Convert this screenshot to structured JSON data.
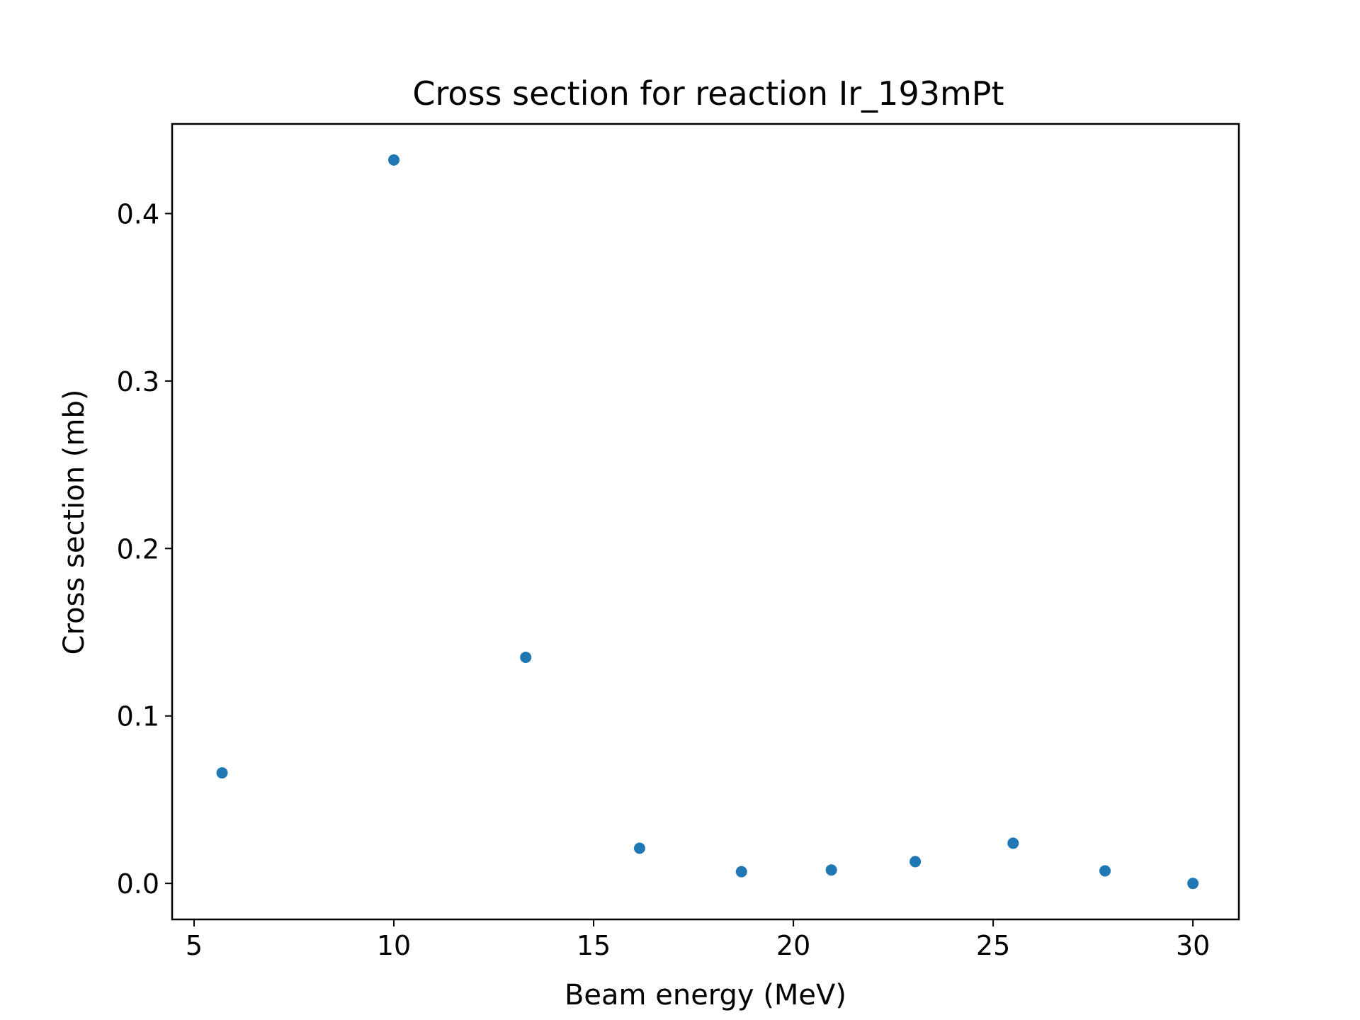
{
  "chart_data": {
    "type": "scatter",
    "title": "Cross section for reaction Ir_193mPt",
    "xlabel": "Beam energy (MeV)",
    "ylabel": "Cross section (mb)",
    "xlim": [
      4.45,
      31.15
    ],
    "ylim": [
      -0.0215,
      0.4535
    ],
    "x_ticks": [
      5,
      10,
      15,
      20,
      25,
      30
    ],
    "y_ticks": [
      0.0,
      0.1,
      0.2,
      0.3,
      0.4
    ],
    "x_tick_labels": [
      "5",
      "10",
      "15",
      "20",
      "25",
      "30"
    ],
    "y_tick_labels": [
      "0.0",
      "0.1",
      "0.2",
      "0.3",
      "0.4"
    ],
    "grid": false,
    "legend": "none",
    "series": [
      {
        "color": "#1f77b4",
        "marker": "circle",
        "x": [
          5.7,
          10.0,
          13.3,
          16.15,
          18.7,
          20.95,
          23.05,
          25.5,
          27.8,
          30.0
        ],
        "y": [
          0.066,
          0.432,
          0.135,
          0.021,
          0.007,
          0.008,
          0.013,
          0.024,
          0.0075,
          0.0
        ]
      }
    ]
  }
}
